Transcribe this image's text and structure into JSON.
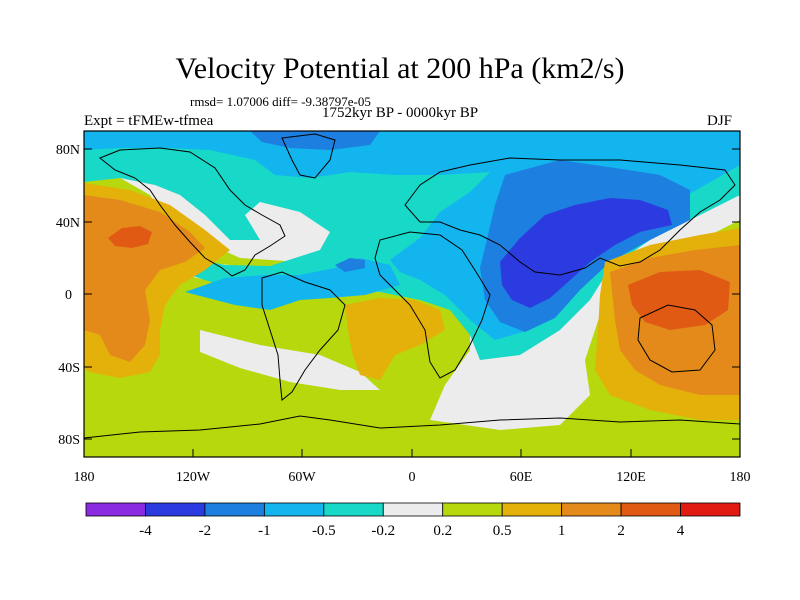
{
  "title": "Velocity Potential at 200 hPa (km2/s)",
  "stats": "rmsd= 1.07006 diff= -9.38797e-05",
  "period": "1752kyr BP - 0000kyr BP",
  "experiment": "Expt = tFMEw-tfmea",
  "season": "DJF",
  "lat_labels": [
    "80N",
    "40N",
    "0",
    "40S",
    "80S"
  ],
  "lon_labels": [
    "180",
    "120W",
    "60W",
    "0",
    "60E",
    "120E",
    "180"
  ],
  "colorbar": {
    "colors": [
      "#8a2be2",
      "#2b3be0",
      "#1d7fe0",
      "#12b5ee",
      "#18d8c8",
      "#ececec",
      "#b6d80c",
      "#e4b10a",
      "#e38a1a",
      "#e15a14",
      "#e21b12"
    ],
    "labels": [
      "-4",
      "-2",
      "-1",
      "-0.5",
      "-0.2",
      "0.2",
      "0.5",
      "1",
      "2",
      "4"
    ]
  }
}
